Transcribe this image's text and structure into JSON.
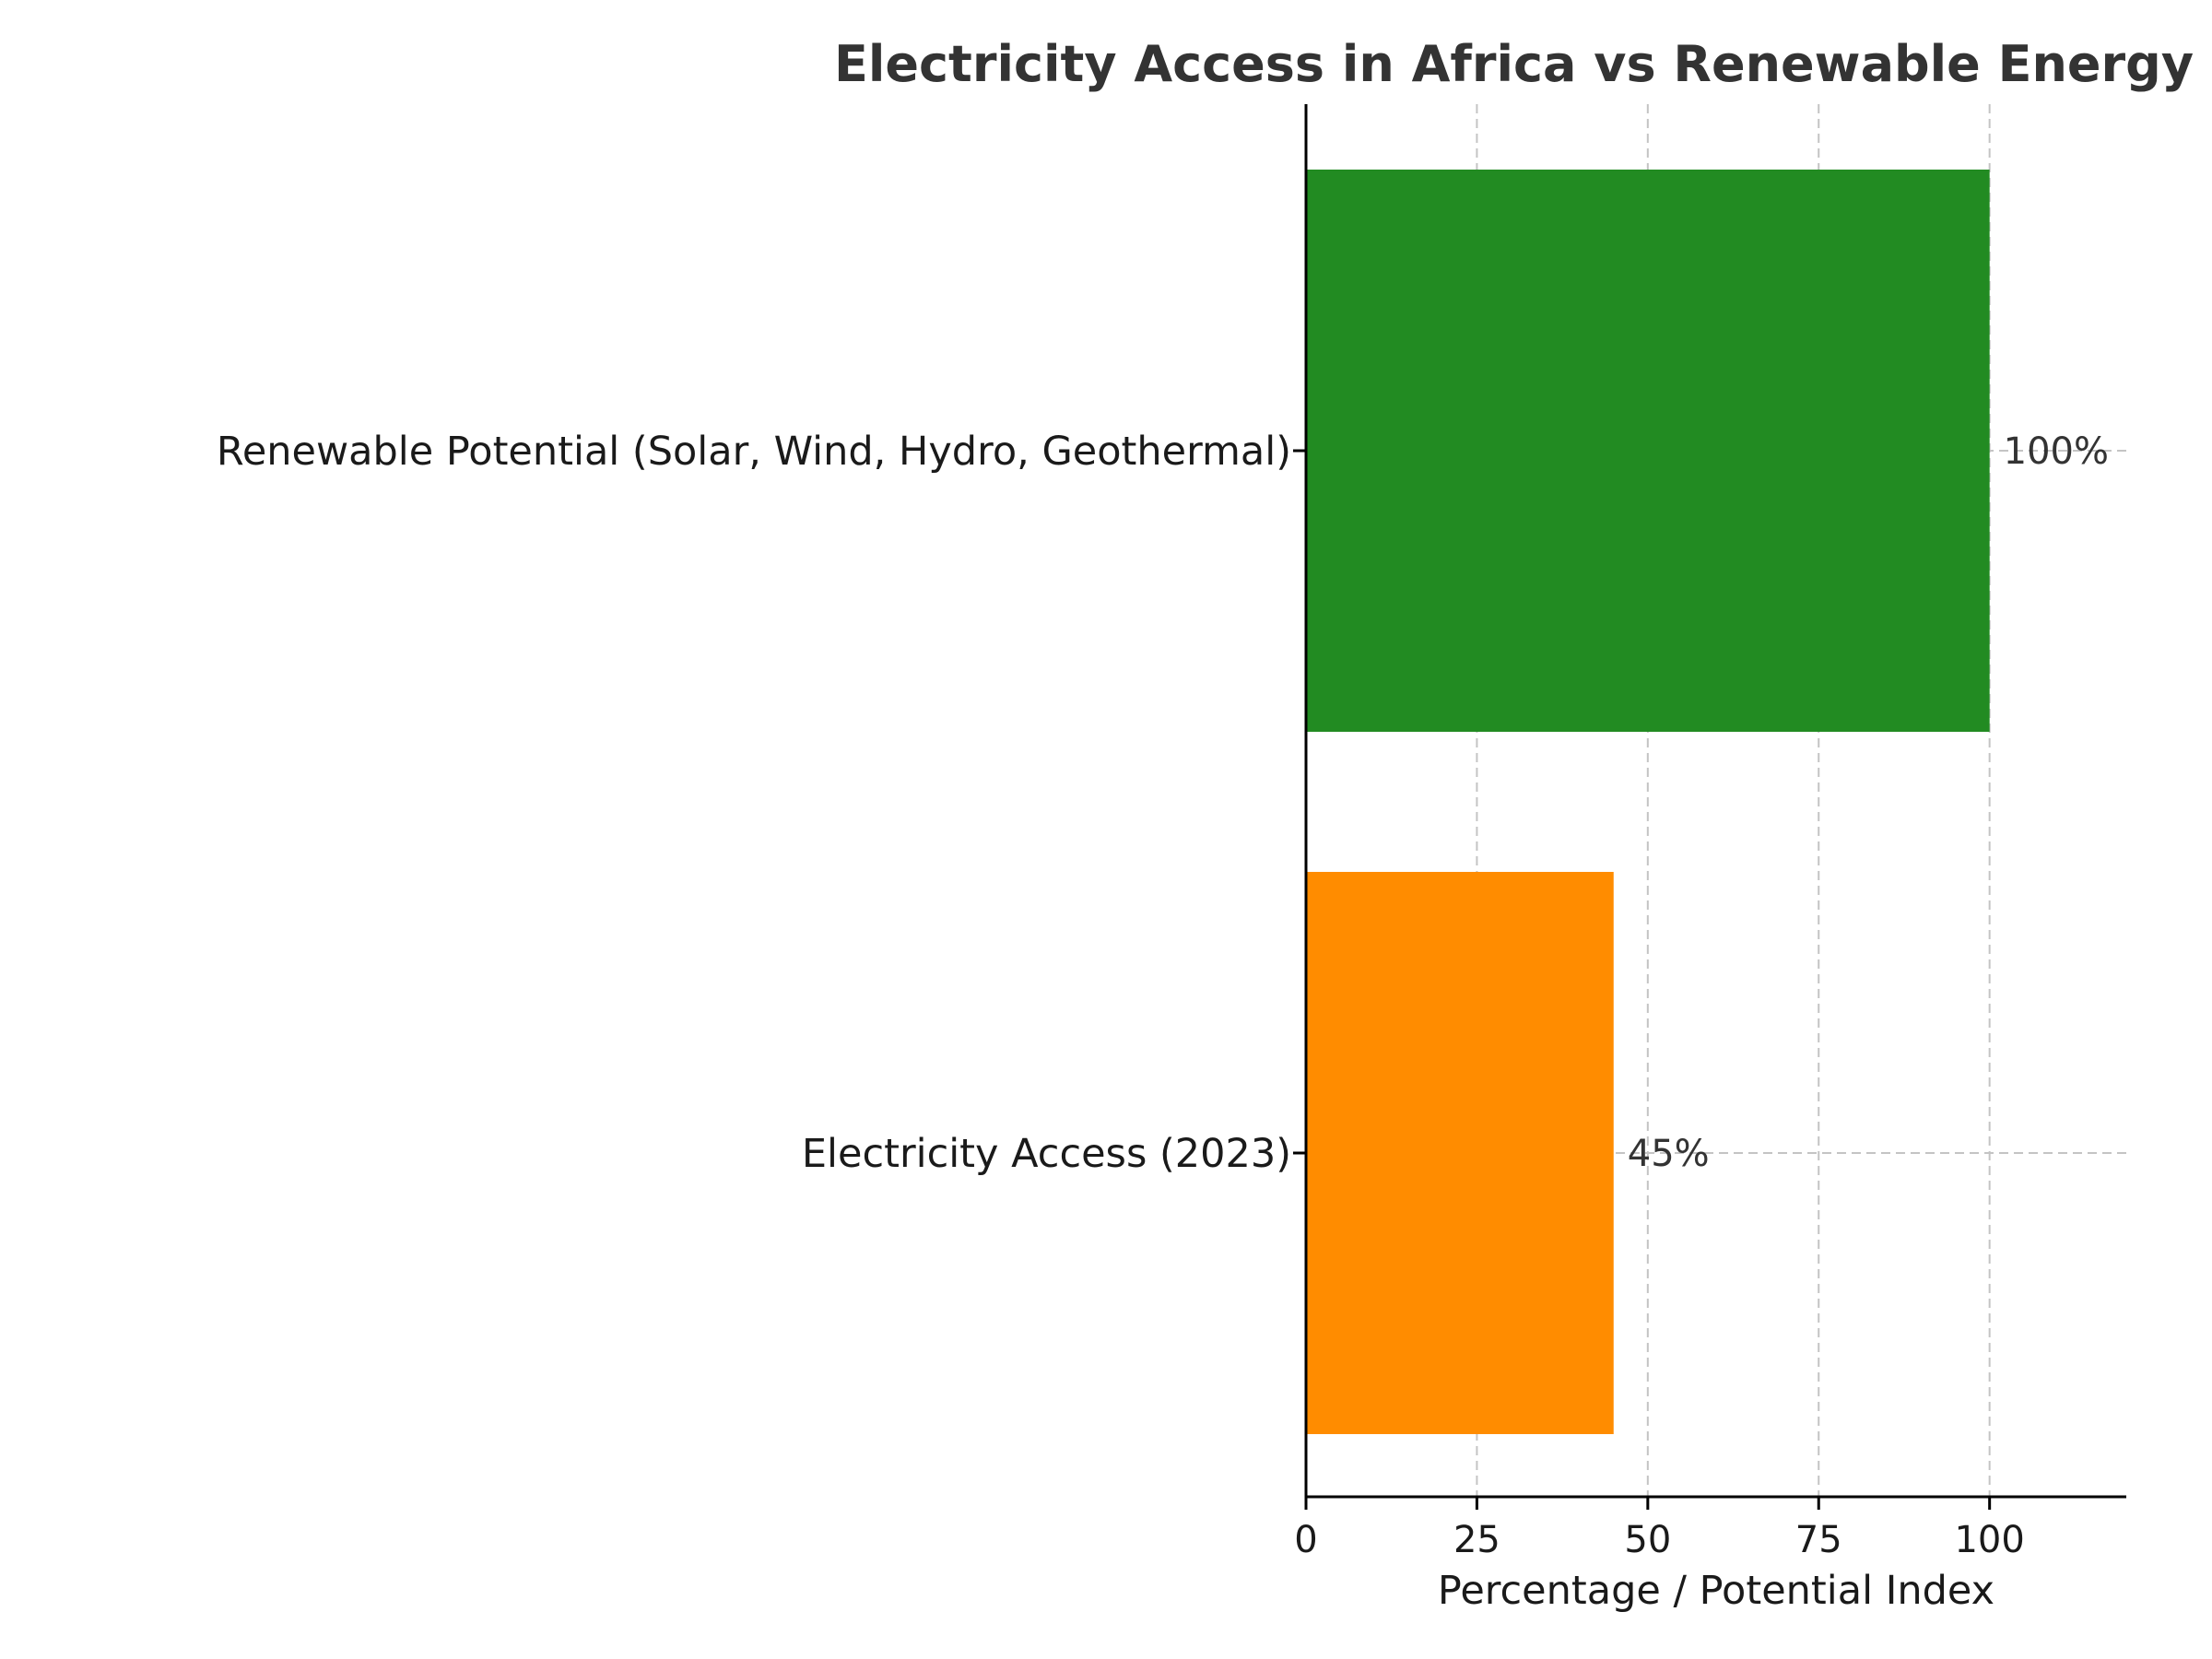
{
  "chart_data": {
    "type": "bar",
    "orientation": "horizontal",
    "title": "Electricity Access in Africa vs Renewable Energy Potential",
    "xlabel": "Percentage / Potential Index",
    "ylabel": "",
    "xlim": [
      0,
      120
    ],
    "xticks": [
      0,
      25,
      50,
      75,
      100
    ],
    "grid": true,
    "categories": [
      "Electricity Access (2023)",
      "Renewable Potential (Solar, Wind, Hydro, Geothermal)"
    ],
    "values": [
      45,
      100
    ],
    "data_labels": [
      "45%",
      "100%"
    ],
    "colors": [
      "#ff8c00",
      "#228b22"
    ]
  }
}
